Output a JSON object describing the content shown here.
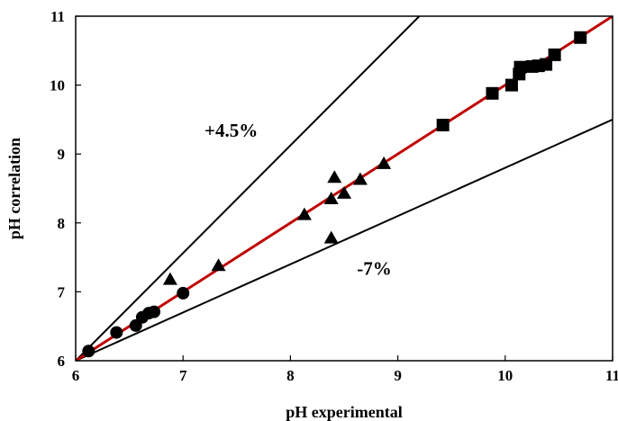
{
  "chart_data": {
    "type": "scatter",
    "xlabel": "pH experimental",
    "ylabel": "pH correlation",
    "xlim": [
      6,
      11
    ],
    "ylim": [
      6,
      11
    ],
    "xticks": [
      "6",
      "7",
      "8",
      "9",
      "10",
      "11"
    ],
    "yticks": [
      "6",
      "7",
      "8",
      "9",
      "10",
      "11"
    ],
    "grid": false,
    "annotations": [
      {
        "text": "+4.5%",
        "x": 7.2,
        "y": 9.25
      },
      {
        "text": "-7%",
        "x": 8.62,
        "y": 7.25
      }
    ],
    "reference_lines": [
      {
        "label": "+4.5%",
        "points": [
          [
            6,
            6
          ],
          [
            9.2,
            11
          ]
        ],
        "color": "#000000"
      },
      {
        "label": "-7%",
        "points": [
          [
            6,
            6
          ],
          [
            11,
            9.5
          ]
        ],
        "color": "#000000"
      },
      {
        "label": "",
        "points": [
          [
            6,
            6
          ],
          [
            11,
            11
          ]
        ],
        "color": "#c00000"
      }
    ],
    "series": [
      {
        "marker": "circle",
        "color": "#000000",
        "points": [
          [
            6.12,
            6.14
          ],
          [
            6.38,
            6.41
          ],
          [
            6.56,
            6.51
          ],
          [
            6.62,
            6.63
          ],
          [
            6.68,
            6.69
          ],
          [
            6.73,
            6.71
          ],
          [
            7.0,
            6.98
          ]
        ]
      },
      {
        "marker": "triangle",
        "color": "#000000",
        "points": [
          [
            6.88,
            7.18
          ],
          [
            7.33,
            7.38
          ],
          [
            8.13,
            8.12
          ],
          [
            8.38,
            8.35
          ],
          [
            8.41,
            8.66
          ],
          [
            8.5,
            8.43
          ],
          [
            8.65,
            8.63
          ],
          [
            8.87,
            8.86
          ],
          [
            8.38,
            7.78
          ]
        ]
      },
      {
        "marker": "square",
        "color": "#000000",
        "points": [
          [
            9.42,
            9.42
          ],
          [
            9.88,
            9.88
          ],
          [
            10.06,
            10.0
          ],
          [
            10.13,
            10.16
          ],
          [
            10.14,
            10.26
          ],
          [
            10.25,
            10.27
          ],
          [
            10.31,
            10.28
          ],
          [
            10.38,
            10.3
          ],
          [
            10.46,
            10.44
          ],
          [
            10.7,
            10.69
          ]
        ]
      }
    ]
  }
}
